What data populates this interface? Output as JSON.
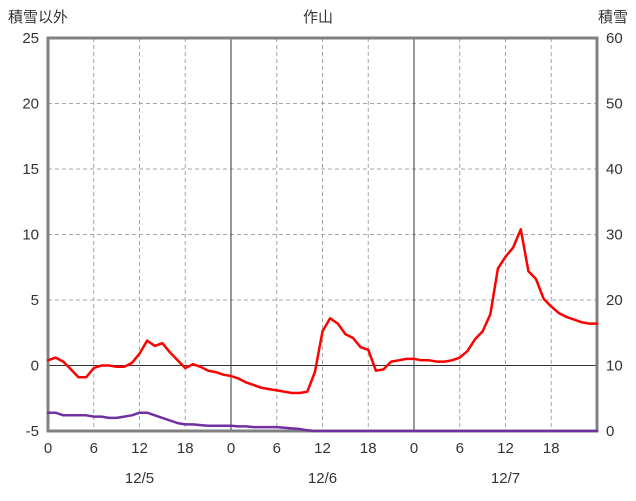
{
  "header": {
    "left_axis_title": "積雪以外",
    "title": "作山",
    "right_axis_title": "積雪"
  },
  "chart_data": {
    "type": "line",
    "title": "作山",
    "x_unit": "hours",
    "x_start": 0,
    "x_step": 1,
    "x_range": [
      0,
      72
    ],
    "grid": true,
    "legend": "none",
    "left_axis": {
      "label": "積雪以外",
      "min": -5,
      "max": 25,
      "ticks": [
        25,
        20,
        15,
        10,
        5,
        0,
        -5
      ]
    },
    "right_axis": {
      "label": "積雪",
      "min": 0,
      "max": 60,
      "ticks": [
        60,
        50,
        40,
        30,
        20,
        10,
        0
      ]
    },
    "x_ticks": [
      {
        "hour": 0,
        "label": "0"
      },
      {
        "hour": 6,
        "label": "6"
      },
      {
        "hour": 12,
        "label": "12"
      },
      {
        "hour": 18,
        "label": "18"
      },
      {
        "hour": 24,
        "label": "0"
      },
      {
        "hour": 30,
        "label": "6"
      },
      {
        "hour": 36,
        "label": "12"
      },
      {
        "hour": 42,
        "label": "18"
      },
      {
        "hour": 48,
        "label": "0"
      },
      {
        "hour": 54,
        "label": "6"
      },
      {
        "hour": 60,
        "label": "12"
      },
      {
        "hour": 66,
        "label": "18"
      }
    ],
    "day_labels": [
      {
        "center_hour": 12,
        "label": "12/5"
      },
      {
        "center_hour": 36,
        "label": "12/6"
      },
      {
        "center_hour": 60,
        "label": "12/7"
      }
    ],
    "colors": {
      "frame": "#808080",
      "grid_dashed": "#a6a6a6",
      "grid_solid": "#333333",
      "text": "#333333"
    },
    "series": [
      {
        "name": "積雪以外",
        "data_name": "left-series-line",
        "axis": "left",
        "color": "#ff0000",
        "values": [
          0.4,
          0.6,
          0.3,
          -0.3,
          -0.9,
          -0.9,
          -0.2,
          0,
          0,
          -0.1,
          -0.1,
          0.2,
          0.9,
          1.9,
          1.5,
          1.7,
          1,
          0.4,
          -0.2,
          0.1,
          -0.1,
          -0.4,
          -0.5,
          -0.7,
          -0.8,
          -1,
          -1.3,
          -1.5,
          -1.7,
          -1.8,
          -1.9,
          -2,
          -2.1,
          -2.1,
          -2,
          -0.5,
          2.6,
          3.6,
          3.2,
          2.4,
          2.1,
          1.4,
          1.2,
          -0.4,
          -0.3,
          0.3,
          0.4,
          0.5,
          0.5,
          0.4,
          0.4,
          0.3,
          0.3,
          0.4,
          0.6,
          1.1,
          2,
          2.6,
          3.9,
          7.4,
          8.3,
          9,
          10.4,
          7.2,
          6.6,
          5.1,
          4.5,
          4,
          3.7,
          3.5,
          3.3,
          3.2,
          3.2
        ]
      },
      {
        "name": "積雪",
        "data_name": "right-series-line",
        "axis": "right",
        "color": "#7030a0",
        "values": [
          2.8,
          2.8,
          2.4,
          2.4,
          2.4,
          2.4,
          2.2,
          2.2,
          2,
          2,
          2.2,
          2.4,
          2.8,
          2.8,
          2.4,
          2,
          1.6,
          1.2,
          1,
          1,
          0.9,
          0.8,
          0.8,
          0.8,
          0.8,
          0.7,
          0.7,
          0.6,
          0.6,
          0.6,
          0.6,
          0.5,
          0.4,
          0.3,
          0.1,
          0,
          0,
          0,
          0,
          0,
          0,
          0,
          0,
          0,
          0,
          0,
          0,
          0,
          0,
          0,
          0,
          0,
          0,
          0,
          0,
          0,
          0,
          0,
          0,
          0,
          0,
          0,
          0,
          0,
          0,
          0,
          0,
          0,
          0,
          0,
          0,
          0,
          0
        ]
      }
    ]
  }
}
